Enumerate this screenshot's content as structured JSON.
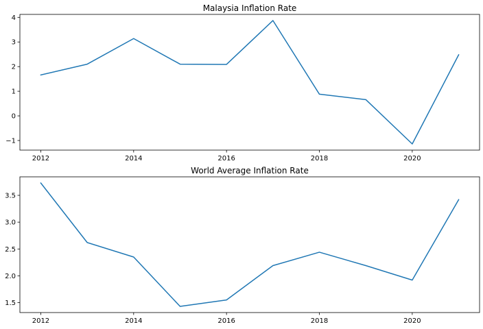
{
  "chart_data": [
    {
      "type": "line",
      "title": "Malaysia Inflation Rate",
      "xlabel": "",
      "ylabel": "",
      "x": [
        2012,
        2013,
        2014,
        2015,
        2016,
        2017,
        2018,
        2019,
        2020,
        2021
      ],
      "series": [
        {
          "values": [
            1.66,
            2.1,
            3.14,
            2.1,
            2.09,
            3.87,
            0.88,
            0.66,
            -1.14,
            2.48
          ],
          "color": "#1f77b4"
        }
      ],
      "xticks": [
        2012,
        2014,
        2016,
        2018,
        2020
      ],
      "xtick_labels": [
        "2012",
        "2014",
        "2016",
        "2018",
        "2020"
      ],
      "yticks": [
        -1,
        0,
        1,
        2,
        3,
        4
      ],
      "ytick_labels": [
        "−1",
        "0",
        "1",
        "2",
        "3",
        "4"
      ],
      "xlim": [
        2011.55,
        2021.45
      ],
      "ylim": [
        -1.39,
        4.12
      ],
      "grid": false,
      "legend": "none"
    },
    {
      "type": "line",
      "title": "World Average Inflation Rate",
      "xlabel": "",
      "ylabel": "",
      "x": [
        2012,
        2013,
        2014,
        2015,
        2016,
        2017,
        2018,
        2019,
        2020,
        2021
      ],
      "series": [
        {
          "values": [
            3.73,
            2.62,
            2.35,
            1.43,
            1.55,
            2.19,
            2.44,
            2.19,
            1.92,
            3.42
          ],
          "color": "#1f77b4"
        }
      ],
      "xticks": [
        2012,
        2014,
        2016,
        2018,
        2020
      ],
      "xtick_labels": [
        "2012",
        "2014",
        "2016",
        "2018",
        "2020"
      ],
      "yticks": [
        1.5,
        2.0,
        2.5,
        3.0,
        3.5
      ],
      "ytick_labels": [
        "1.5",
        "2.0",
        "2.5",
        "3.0",
        "3.5"
      ],
      "xlim": [
        2011.55,
        2021.45
      ],
      "ylim": [
        1.315,
        3.845
      ],
      "grid": false,
      "legend": "none"
    }
  ]
}
